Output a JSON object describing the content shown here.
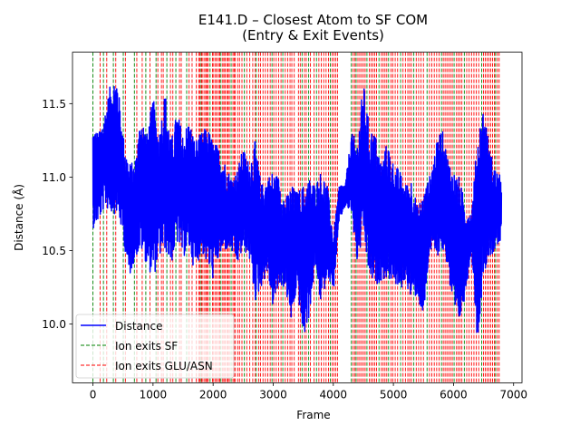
{
  "chart_data": {
    "type": "line",
    "title": "E141.D – Closest Atom to SF COM",
    "subtitle": "(Entry & Exit Events)",
    "xlabel": "Frame",
    "ylabel": "Distance (Å)",
    "xlim": [
      -340,
      7140
    ],
    "ylim": [
      9.6,
      11.85
    ],
    "x_ticks": [
      0,
      1000,
      2000,
      3000,
      4000,
      5000,
      6000,
      7000
    ],
    "x_tick_labels": [
      "0",
      "1000",
      "2000",
      "3000",
      "4000",
      "5000",
      "6000",
      "7000"
    ],
    "y_ticks": [
      10.0,
      10.5,
      11.0,
      11.5
    ],
    "y_tick_labels": [
      "10.0",
      "10.5",
      "11.0",
      "11.5"
    ],
    "grid": false,
    "legend_position": "lower-left",
    "legend": [
      "Distance",
      "Ion exits SF",
      "Ion exits GLU/ASN"
    ],
    "colors": {
      "distance": "#0000ff",
      "exit_sf": "#008000",
      "exit_glu": "#ff0000"
    },
    "series": [
      {
        "name": "Distance",
        "frame_range": [
          0,
          6800
        ],
        "envelope_x": [
          0,
          100,
          200,
          300,
          400,
          500,
          600,
          700,
          800,
          900,
          1000,
          1100,
          1200,
          1300,
          1400,
          1500,
          1600,
          1700,
          1800,
          1900,
          2000,
          2100,
          2200,
          2300,
          2400,
          2500,
          2600,
          2700,
          2800,
          2900,
          3000,
          3100,
          3200,
          3300,
          3400,
          3500,
          3600,
          3700,
          3800,
          3900,
          4000,
          4100,
          4200,
          4300,
          4400,
          4500,
          4600,
          4700,
          4800,
          4900,
          5000,
          5100,
          5200,
          5300,
          5400,
          5500,
          5600,
          5700,
          5800,
          5900,
          6000,
          6100,
          6200,
          6300,
          6400,
          6500,
          6600,
          6700,
          6800
        ],
        "envelope_low": [
          10.65,
          10.7,
          10.8,
          10.75,
          10.75,
          10.6,
          10.3,
          10.45,
          10.5,
          10.4,
          10.3,
          10.45,
          10.5,
          10.4,
          10.55,
          10.45,
          10.5,
          10.35,
          10.5,
          10.4,
          10.3,
          10.45,
          10.5,
          10.5,
          10.4,
          10.5,
          10.45,
          10.15,
          10.25,
          10.35,
          10.1,
          10.25,
          10.25,
          10.0,
          10.25,
          9.88,
          10.05,
          10.4,
          10.1,
          10.35,
          10.2,
          10.7,
          10.8,
          10.75,
          10.4,
          10.6,
          10.3,
          10.25,
          10.3,
          10.3,
          10.3,
          10.2,
          10.3,
          10.15,
          10.2,
          10.0,
          10.5,
          10.45,
          10.5,
          10.4,
          10.0,
          10.0,
          10.2,
          10.5,
          9.85,
          10.35,
          10.45,
          10.5,
          10.55
        ],
        "envelope_high": [
          11.35,
          11.3,
          11.45,
          11.65,
          11.7,
          11.3,
          11.1,
          11.1,
          11.45,
          11.3,
          11.55,
          11.3,
          11.6,
          11.25,
          11.45,
          11.3,
          11.4,
          11.25,
          11.3,
          11.35,
          11.25,
          11.2,
          11.1,
          11.0,
          11.05,
          11.2,
          11.1,
          11.25,
          10.95,
          11.0,
          11.05,
          11.0,
          10.85,
          10.95,
          10.9,
          10.95,
          11.0,
          10.95,
          11.05,
          10.95,
          10.6,
          10.95,
          10.95,
          11.3,
          11.25,
          11.65,
          11.35,
          11.3,
          11.1,
          11.25,
          11.1,
          11.05,
          10.95,
          11.0,
          10.8,
          10.9,
          11.0,
          11.2,
          11.35,
          11.15,
          11.05,
          11.0,
          10.8,
          10.75,
          11.3,
          11.5,
          11.2,
          11.05,
          11.0
        ]
      }
    ],
    "exit_sf_frames": [
      0,
      175,
      340,
      505,
      690,
      880,
      1050,
      1230,
      1380,
      1560,
      1800,
      1950,
      2130,
      2300,
      2520,
      2720,
      2980,
      3160,
      3480,
      3590,
      3720,
      3950,
      4300,
      4380,
      4560,
      4760,
      4920,
      5120,
      5340,
      5560,
      5800,
      6010,
      6180,
      6470,
      6700
    ],
    "exit_glu_frames": [
      120,
      230,
      380,
      540,
      730,
      820,
      950,
      1080,
      1140,
      1170,
      1290,
      1330,
      1440,
      1470,
      1600,
      1650,
      1720,
      1760,
      1780,
      1810,
      1830,
      1860,
      1880,
      1900,
      1920,
      1990,
      2010,
      2040,
      2060,
      2090,
      2110,
      2160,
      2180,
      2200,
      2230,
      2250,
      2270,
      2330,
      2350,
      2370,
      2410,
      2440,
      2480,
      2560,
      2610,
      2660,
      2700,
      2760,
      2790,
      2830,
      2870,
      2910,
      2950,
      3010,
      3050,
      3090,
      3130,
      3200,
      3240,
      3280,
      3310,
      3350,
      3420,
      3450,
      3520,
      3550,
      3620,
      3680,
      3760,
      3800,
      3840,
      3880,
      3920,
      3980,
      4010,
      4040,
      4070,
      4330,
      4360,
      4410,
      4440,
      4470,
      4500,
      4530,
      4600,
      4630,
      4660,
      4690,
      4720,
      4800,
      4830,
      4860,
      4890,
      4960,
      4990,
      5030,
      5070,
      5160,
      5200,
      5240,
      5270,
      5300,
      5380,
      5420,
      5460,
      5500,
      5600,
      5640,
      5680,
      5720,
      5760,
      5830,
      5860,
      5890,
      5920,
      5950,
      5980,
      6050,
      6080,
      6110,
      6140,
      6220,
      6260,
      6300,
      6340,
      6380,
      6420,
      6500,
      6530,
      6560,
      6590,
      6620,
      6650,
      6680,
      6730,
      6760
    ]
  }
}
